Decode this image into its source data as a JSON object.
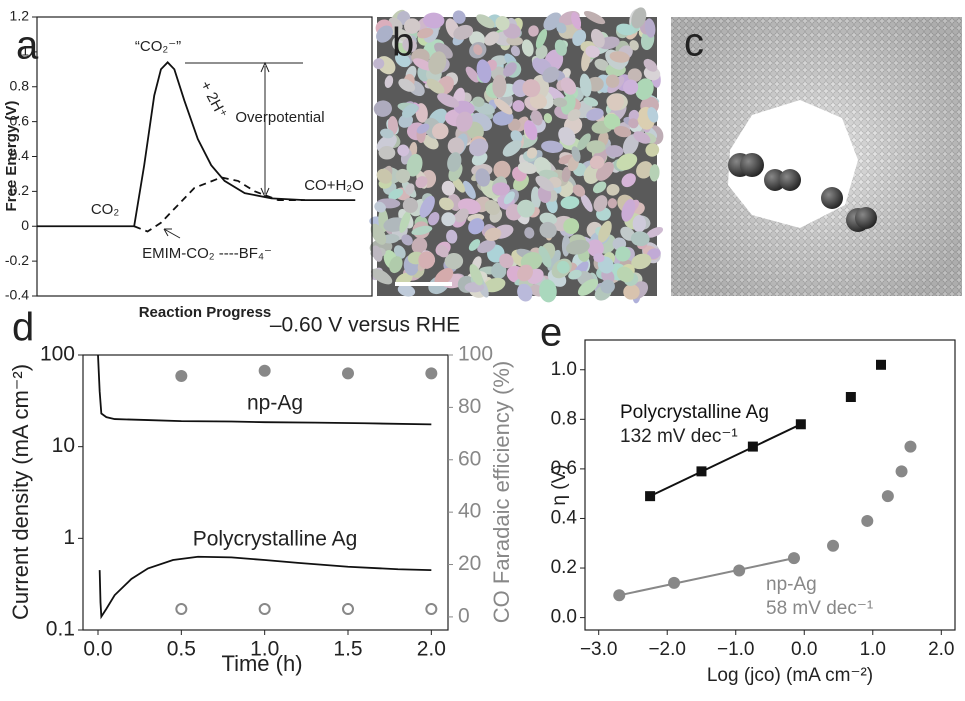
{
  "chart_data": [
    {
      "type": "line",
      "label": "a",
      "ylabel": "Free Energy (V)",
      "xlabel": "Reaction Progress",
      "xlim": [
        0,
        1
      ],
      "ylim": [
        -0.4,
        1.2
      ],
      "yticks": [
        -0.4,
        -0.2,
        0,
        0.2,
        0.4,
        0.6,
        0.8,
        1,
        1.2
      ],
      "annotations": [
        "“CO₂⁻”",
        "+ 2H⁺",
        "Overpotential",
        "CO+H₂O",
        "CO₂",
        "EMIM-CO₂ ----BF₄⁻"
      ],
      "series": [
        {
          "color": "#111",
          "style": "solid",
          "mode": "line",
          "x": [
            0,
            0.29,
            0.32,
            0.35,
            0.37,
            0.39,
            0.41,
            0.44,
            0.48,
            0.52,
            0.56,
            0.62,
            0.7,
            0.8,
            0.95
          ],
          "values": [
            0,
            0,
            0.35,
            0.75,
            0.9,
            0.94,
            0.9,
            0.72,
            0.5,
            0.35,
            0.26,
            0.19,
            0.16,
            0.15,
            0.15
          ]
        },
        {
          "color": "#111",
          "style": "dashed",
          "mode": "line",
          "x": [
            0.29,
            0.33,
            0.37,
            0.42,
            0.47,
            0.55,
            0.6,
            0.65,
            0.72,
            0.8
          ],
          "values": [
            0,
            -0.03,
            0.02,
            0.12,
            0.22,
            0.28,
            0.26,
            0.2,
            0.15,
            0.15
          ]
        }
      ]
    },
    {
      "type": "line",
      "label": "d",
      "ylabel": "Current density (mA cm⁻²)",
      "y2label": "CO Faradaic efficiency (%)",
      "xlabel": "Time (h)",
      "yscale": "log",
      "xlim": [
        -0.09,
        2.1
      ],
      "ylim": [
        0.1,
        100
      ],
      "y2lim": [
        -5,
        100
      ],
      "xticks": [
        {
          "value": 0,
          "label": "0.0"
        },
        0.5,
        {
          "value": 1,
          "label": "1.0"
        },
        1.5,
        {
          "value": 2,
          "label": "2.0"
        }
      ],
      "yticks": [
        0.1,
        1,
        10,
        100
      ],
      "y2ticks": [
        0,
        20,
        40,
        60,
        80,
        100
      ],
      "annotations": [
        "–0.60 V versus RHE"
      ],
      "series": [
        {
          "name": "np-Ag",
          "color": "#111",
          "mode": "line",
          "x": [
            0,
            0.01,
            0.02,
            0.05,
            0.1,
            0.3,
            0.5,
            0.8,
            1.0,
            1.3,
            1.6,
            2.0
          ],
          "values": [
            100,
            40,
            23,
            21,
            20,
            19.5,
            19,
            18.8,
            18.5,
            18.3,
            18,
            17.5
          ]
        },
        {
          "name": "Polycrystalline Ag",
          "color": "#111",
          "mode": "line",
          "x": [
            0.01,
            0.015,
            0.02,
            0.05,
            0.1,
            0.2,
            0.3,
            0.45,
            0.6,
            0.8,
            1.0,
            1.2,
            1.5,
            1.8,
            2.0
          ],
          "values": [
            0.45,
            0.2,
            0.14,
            0.17,
            0.24,
            0.36,
            0.47,
            0.58,
            0.63,
            0.62,
            0.58,
            0.54,
            0.49,
            0.46,
            0.45
          ]
        },
        {
          "color": "#888",
          "mode": "markers",
          "marker": "circle",
          "axis": "y2",
          "x": [
            0.5,
            1.0,
            1.5,
            2.0
          ],
          "values": [
            92,
            94,
            93,
            93
          ]
        },
        {
          "color": "#888",
          "mode": "markers",
          "marker": "open-circle",
          "axis": "y2",
          "x": [
            0.5,
            1.0,
            1.5,
            2.0
          ],
          "values": [
            3,
            3,
            3,
            3
          ]
        }
      ]
    },
    {
      "type": "scatter",
      "label": "e",
      "ylabel": "η (V)",
      "xlabel": "Log (jco) (mA cm⁻²)",
      "xlim": [
        -3.2,
        2.2
      ],
      "ylim": [
        -0.05,
        1.12
      ],
      "xticks": [
        {
          "value": -3,
          "label": "−3.0"
        },
        {
          "value": -2,
          "label": "−2.0"
        },
        {
          "value": -1,
          "label": "−1.0"
        },
        {
          "value": 0,
          "label": "0.0"
        },
        {
          "value": 1,
          "label": "1.0"
        },
        {
          "value": 2,
          "label": "2.0"
        }
      ],
      "yticks": [
        {
          "value": 0,
          "label": "0.0"
        },
        0.2,
        0.4,
        0.6,
        0.8,
        {
          "value": 1,
          "label": "1.0"
        }
      ],
      "annotations": [
        "132 mV dec⁻¹",
        "58 mV dec⁻¹"
      ],
      "series": [
        {
          "name": "Polycrystalline Ag",
          "color": "#111",
          "mode": "markers",
          "marker": "square",
          "x": [
            -2.25,
            -1.5,
            -0.75,
            -0.05,
            0.68,
            1.12
          ],
          "values": [
            0.49,
            0.59,
            0.69,
            0.78,
            0.89,
            1.02
          ]
        },
        {
          "color": "#111",
          "mode": "line",
          "x": [
            -2.25,
            -0.05
          ],
          "values": [
            0.49,
            0.78
          ]
        },
        {
          "name": "np-Ag",
          "color": "#888",
          "mode": "markers",
          "marker": "circle",
          "x": [
            -2.7,
            -1.9,
            -0.95,
            -0.15,
            0.42,
            0.92,
            1.22,
            1.42,
            1.55
          ],
          "values": [
            0.09,
            0.14,
            0.19,
            0.24,
            0.29,
            0.39,
            0.49,
            0.59,
            0.69
          ]
        },
        {
          "color": "#888",
          "mode": "line",
          "x": [
            -2.7,
            -0.15
          ],
          "values": [
            0.09,
            0.24
          ]
        }
      ]
    }
  ],
  "images": [
    {
      "label": "b"
    },
    {
      "label": "c"
    }
  ]
}
